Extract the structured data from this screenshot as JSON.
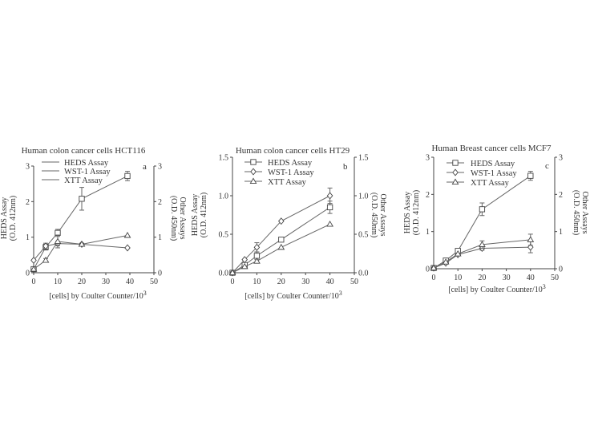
{
  "chart_data": [
    {
      "type": "line",
      "title": "Human colon cancer cells HCT116",
      "panel_label": "a",
      "xlabel": "[cells] by Coulter Counter/10",
      "xlabel_sup": "3",
      "ylabel_left": [
        "HEDS Assay",
        "(O.D. 412nm)"
      ],
      "ylabel_right": [
        "Other Assays",
        "(O.D. 450nm)"
      ],
      "xlim": [
        0,
        50
      ],
      "ylim_left": [
        0,
        3
      ],
      "ylim_right": [
        0,
        3
      ],
      "x_ticks": [
        "0",
        "10",
        "20",
        "30",
        "40",
        "50"
      ],
      "y_ticks_left": [
        "0",
        "1",
        "2",
        "3"
      ],
      "y_ticks_right": [
        "0",
        "1",
        "2",
        "3"
      ],
      "legend": [
        "HEDS Assay",
        "WST-1 Assay",
        "XTT Assay"
      ],
      "series": [
        {
          "name": "HEDS Assay",
          "marker": "square",
          "x": [
            0,
            5,
            10,
            20,
            39
          ],
          "y": [
            0.1,
            0.72,
            1.12,
            2.08,
            2.72
          ],
          "err": [
            0.0,
            0.08,
            0.1,
            0.32,
            0.13
          ]
        },
        {
          "name": "WST-1 Assay",
          "marker": "diamond",
          "x": [
            0,
            5,
            10,
            20,
            39
          ],
          "y": [
            0.35,
            0.75,
            0.82,
            0.8,
            0.7
          ],
          "err": [
            0.0,
            0.08,
            0.06,
            0.03,
            0.0
          ]
        },
        {
          "name": "XTT Assay",
          "marker": "triangle",
          "x": [
            0,
            5,
            10,
            20,
            39
          ],
          "y": [
            0.1,
            0.35,
            0.88,
            0.8,
            1.05
          ],
          "err": [
            0.0,
            0.05,
            0.18,
            0.0,
            0.0
          ]
        }
      ]
    },
    {
      "type": "line",
      "title": "Human colon cancer cells HT29",
      "panel_label": "b",
      "xlabel": "[cells] by Coulter Counter/10",
      "xlabel_sup": "3",
      "ylabel_left": [
        "HEDS Assay",
        "(O.D. 412nm)"
      ],
      "ylabel_right": [
        "Other Assays",
        "(O.D. 450nm)"
      ],
      "xlim": [
        0,
        50
      ],
      "ylim_left": [
        0,
        1.5
      ],
      "ylim_right": [
        0,
        1.5
      ],
      "x_ticks": [
        "0",
        "10",
        "20",
        "30",
        "40",
        "50"
      ],
      "y_ticks_left": [
        "0.0",
        "0.5",
        "1.0",
        "1.5"
      ],
      "y_ticks_right": [
        "0.0",
        "0.5",
        "1.0",
        "1.5"
      ],
      "legend": [
        "HEDS Assay",
        "WST-1 Assay",
        "XTT Assay"
      ],
      "series": [
        {
          "name": "HEDS Assay",
          "marker": "square",
          "x": [
            0,
            5,
            10,
            20,
            40
          ],
          "y": [
            0.0,
            0.1,
            0.22,
            0.43,
            0.85
          ],
          "err": [
            0.0,
            0.02,
            0.05,
            0.0,
            0.08
          ]
        },
        {
          "name": "WST-1 Assay",
          "marker": "diamond",
          "x": [
            0,
            5,
            10,
            20,
            40
          ],
          "y": [
            0.0,
            0.17,
            0.33,
            0.67,
            1.0
          ],
          "err": [
            0.0,
            0.0,
            0.06,
            0.0,
            0.1
          ]
        },
        {
          "name": "XTT Assay",
          "marker": "triangle",
          "x": [
            0,
            5,
            10,
            20,
            40
          ],
          "y": [
            0.0,
            0.08,
            0.15,
            0.33,
            0.63
          ],
          "err": [
            0.0,
            0.0,
            0.0,
            0.0,
            0.0
          ]
        }
      ]
    },
    {
      "type": "line",
      "title": "Human Breast cancer cells MCF7",
      "panel_label": "c",
      "xlabel": "[cells] by Coulter Counter/10",
      "xlabel_sup": "3",
      "ylabel_left": [
        "HEDS Assay",
        "(O.D. 412nm)"
      ],
      "ylabel_right": [
        "Other Assays",
        "(O.D. 450nm)"
      ],
      "xlim": [
        0,
        50
      ],
      "ylim_left": [
        0,
        3
      ],
      "ylim_right": [
        0,
        3
      ],
      "x_ticks": [
        "0",
        "10",
        "20",
        "30",
        "40",
        "50"
      ],
      "y_ticks_left": [
        "0",
        "1",
        "2",
        "3"
      ],
      "y_ticks_right": [
        "0",
        "1",
        "2",
        "3"
      ],
      "legend": [
        "HEDS Assay",
        "WST-1 Assay",
        "XTT Assay"
      ],
      "series": [
        {
          "name": "HEDS Assay",
          "marker": "square",
          "x": [
            0,
            5,
            10,
            20,
            40
          ],
          "y": [
            0.02,
            0.22,
            0.48,
            1.6,
            2.5
          ],
          "err": [
            0.0,
            0.0,
            0.05,
            0.17,
            0.12
          ]
        },
        {
          "name": "WST-1 Assay",
          "marker": "diamond",
          "x": [
            0,
            5,
            10,
            20,
            40
          ],
          "y": [
            0.02,
            0.15,
            0.38,
            0.55,
            0.58
          ],
          "err": [
            0.0,
            0.0,
            0.0,
            0.05,
            0.15
          ]
        },
        {
          "name": "XTT Assay",
          "marker": "triangle",
          "x": [
            0,
            5,
            10,
            20,
            40
          ],
          "y": [
            0.02,
            0.18,
            0.4,
            0.65,
            0.78
          ],
          "err": [
            0.0,
            0.0,
            0.0,
            0.1,
            0.15
          ]
        }
      ]
    }
  ]
}
